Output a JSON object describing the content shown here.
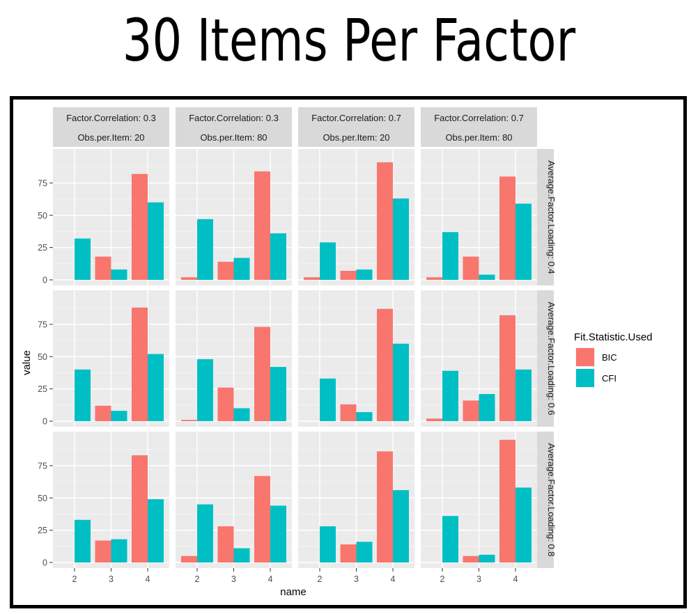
{
  "page": {
    "title": "30 Items Per Factor"
  },
  "chart_data": {
    "type": "bar",
    "xlabel": "name",
    "ylabel": "value",
    "ylim": [
      0,
      95
    ],
    "yticks": [
      0,
      25,
      50,
      75
    ],
    "categories": [
      "2",
      "3",
      "4"
    ],
    "legend": {
      "title": "Fit.Statistic.Used",
      "position": "right",
      "entries": [
        {
          "name": "BIC",
          "color": "#F8766D"
        },
        {
          "name": "CFI",
          "color": "#00BFC4"
        }
      ]
    },
    "grid": true,
    "columns": [
      {
        "top": "Factor.Correlation: 0.3",
        "bottom": "Obs.per.Item: 20"
      },
      {
        "top": "Factor.Correlation: 0.3",
        "bottom": "Obs.per.Item: 80"
      },
      {
        "top": "Factor.Correlation: 0.7",
        "bottom": "Obs.per.Item: 20"
      },
      {
        "top": "Factor.Correlation: 0.7",
        "bottom": "Obs.per.Item: 80"
      }
    ],
    "rows": [
      "Average.Factor.Loading: 0.4",
      "Average.Factor.Loading: 0.6",
      "Average.Factor.Loading: 0.8"
    ],
    "panels": [
      [
        {
          "BIC": [
            0,
            18,
            82
          ],
          "CFI": [
            32,
            8,
            60
          ]
        },
        {
          "BIC": [
            2,
            14,
            84
          ],
          "CFI": [
            47,
            17,
            36
          ]
        },
        {
          "BIC": [
            2,
            7,
            91
          ],
          "CFI": [
            29,
            8,
            63
          ]
        },
        {
          "BIC": [
            2,
            18,
            80
          ],
          "CFI": [
            37,
            4,
            59
          ]
        }
      ],
      [
        {
          "BIC": [
            0,
            12,
            88
          ],
          "CFI": [
            40,
            8,
            52
          ]
        },
        {
          "BIC": [
            1,
            26,
            73
          ],
          "CFI": [
            48,
            10,
            42
          ]
        },
        {
          "BIC": [
            0,
            13,
            87
          ],
          "CFI": [
            33,
            7,
            60
          ]
        },
        {
          "BIC": [
            2,
            16,
            82
          ],
          "CFI": [
            39,
            21,
            40
          ]
        }
      ],
      [
        {
          "BIC": [
            0,
            17,
            83
          ],
          "CFI": [
            33,
            18,
            49
          ]
        },
        {
          "BIC": [
            5,
            28,
            67
          ],
          "CFI": [
            45,
            11,
            44
          ]
        },
        {
          "BIC": [
            0,
            14,
            86
          ],
          "CFI": [
            28,
            16,
            56
          ]
        },
        {
          "BIC": [
            0,
            5,
            95
          ],
          "CFI": [
            36,
            6,
            58
          ]
        }
      ]
    ]
  }
}
